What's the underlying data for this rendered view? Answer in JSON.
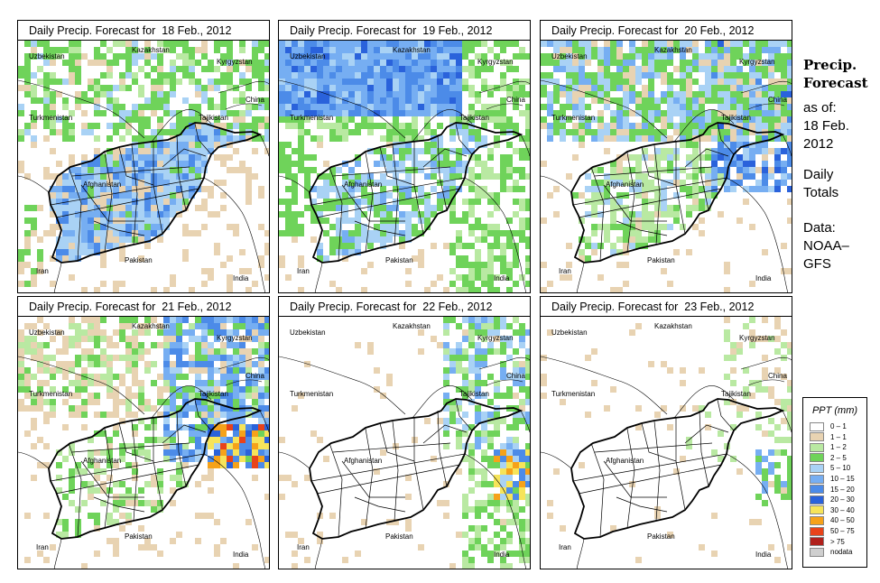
{
  "panels": [
    {
      "title": "Daily Precip. Forecast for  18 Feb., 2012",
      "seed": 11,
      "profile": "d18"
    },
    {
      "title": "Daily Precip. Forecast for  19 Feb., 2012",
      "seed": 23,
      "profile": "d19"
    },
    {
      "title": "Daily Precip. Forecast for  20 Feb., 2012",
      "seed": 37,
      "profile": "d20"
    },
    {
      "title": "Daily Precip. Forecast for  21 Feb., 2012",
      "seed": 41,
      "profile": "d21"
    },
    {
      "title": "Daily Precip. Forecast for  22 Feb., 2012",
      "seed": 53,
      "profile": "d22"
    },
    {
      "title": "Daily Precip. Forecast for  23 Feb., 2012",
      "seed": 67,
      "profile": "d23"
    }
  ],
  "country_labels": {
    "uzbekistan": "Uzbekistan",
    "kazakhstan": "Kazakhstan",
    "kyrgyzstan": "Kyrgyzstan",
    "china": "China",
    "turkmenistan": "Turkmenistan",
    "tajikistan": "Tajikistan",
    "afghanistan": "Afghanistan",
    "pakistan": "Pakistan",
    "iran": "Iran",
    "india": "India"
  },
  "sidebar": {
    "title_line1": "Precip.",
    "title_line2": "Forecast",
    "asof": "as of:",
    "date_line1": "18 Feb.",
    "date_line2": "2012",
    "totals_line1": "Daily",
    "totals_line2": "Totals",
    "data_line1": "Data:",
    "data_line2": "NOAA–",
    "data_line3": "GFS"
  },
  "legend": {
    "title": "PPT (mm)",
    "items": [
      {
        "label": "0 – 1",
        "color": "#ffffff"
      },
      {
        "label": "1 – 1",
        "color": "#e8d3b2"
      },
      {
        "label": "1 – 2",
        "color": "#b9e9a2"
      },
      {
        "label": "2 – 5",
        "color": "#6fd35a"
      },
      {
        "label": "5 – 10",
        "color": "#a9d2f5"
      },
      {
        "label": "10 – 15",
        "color": "#76aef2"
      },
      {
        "label": "15 – 20",
        "color": "#4c8be8"
      },
      {
        "label": "20 – 30",
        "color": "#2a62db"
      },
      {
        "label": "30 – 40",
        "color": "#f6e45a"
      },
      {
        "label": "40 – 50",
        "color": "#f6a21a"
      },
      {
        "label": "50 – 75",
        "color": "#e8431a"
      },
      {
        "label": "> 75",
        "color": "#b0201b"
      },
      {
        "label": "nodata",
        "color": "#cfcfcf"
      }
    ]
  }
}
